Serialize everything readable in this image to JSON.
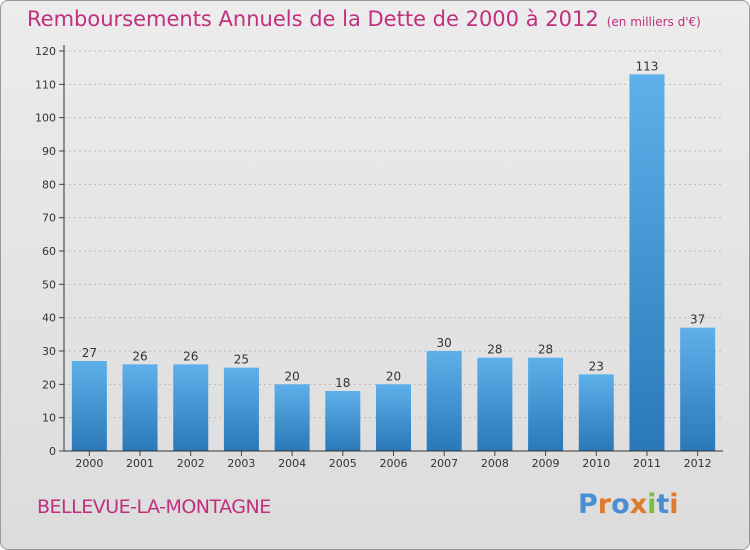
{
  "title": "Remboursements Annuels de la Dette de 2000 à 2012",
  "unit": "(en milliers d'€)",
  "commune": "BELLEVUE-LA-MONTAGNE",
  "logo": {
    "text": "Proxiti",
    "letters": [
      {
        "ch": "P",
        "color": "#4a8fd4"
      },
      {
        "ch": "r",
        "color": "#e07a2a"
      },
      {
        "ch": "o",
        "color": "#4a8fd4"
      },
      {
        "ch": "x",
        "color": "#e07a2a"
      },
      {
        "ch": "i",
        "color": "#7bbf3a"
      },
      {
        "ch": "t",
        "color": "#4a8fd4"
      },
      {
        "ch": "i",
        "color": "#e07a2a"
      }
    ]
  },
  "colors": {
    "title": "#c12f7f",
    "bar_top": "#5eb0ea",
    "bar_bottom": "#2a78b8"
  },
  "chart_data": {
    "type": "bar",
    "categories": [
      "2000",
      "2001",
      "2002",
      "2003",
      "2004",
      "2005",
      "2006",
      "2007",
      "2008",
      "2009",
      "2010",
      "2011",
      "2012"
    ],
    "values": [
      27,
      26,
      26,
      25,
      20,
      18,
      20,
      30,
      28,
      28,
      23,
      113,
      37
    ],
    "title": "Remboursements Annuels de la Dette de 2000 à 2012",
    "xlabel": "",
    "ylabel": "",
    "ylim": [
      0,
      120
    ],
    "yticks": [
      0,
      10,
      20,
      30,
      40,
      50,
      60,
      70,
      80,
      90,
      100,
      110,
      120
    ],
    "grid": true,
    "data_labels": true
  }
}
